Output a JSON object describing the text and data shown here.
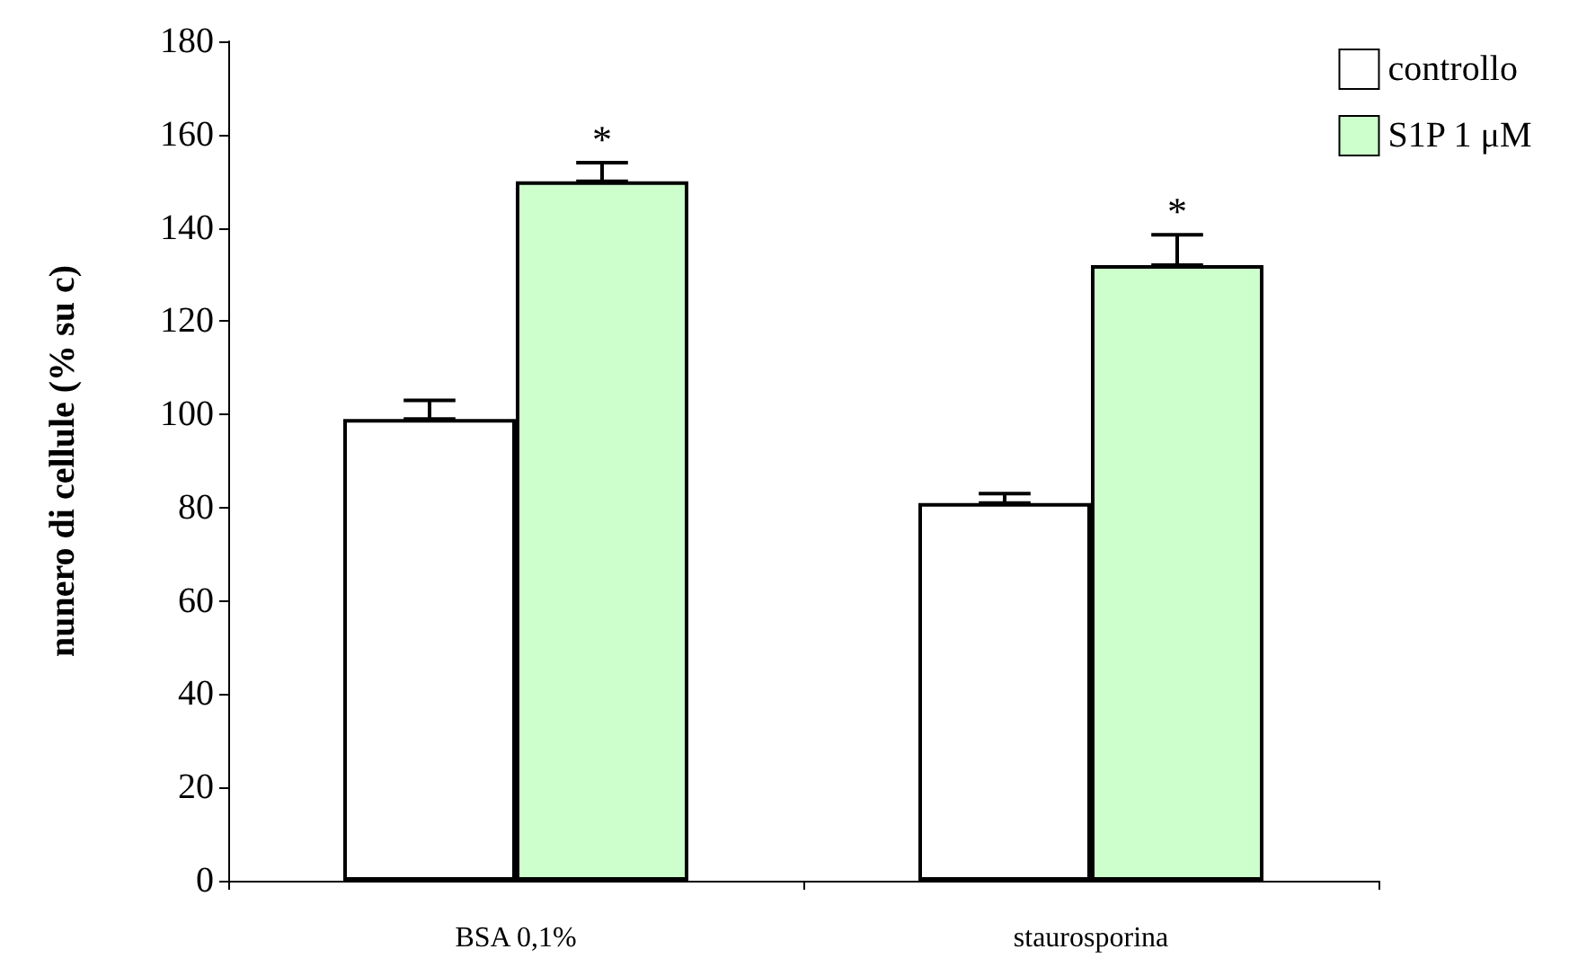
{
  "chart_data": {
    "type": "bar",
    "ylabel": "nunero di cellule (% su c)",
    "categories": [
      "BSA 0,1%",
      "staurosporina"
    ],
    "series": [
      {
        "name": "controllo",
        "color": "#ffffff",
        "values": [
          99,
          81
        ],
        "errors": [
          [
            99,
            103
          ],
          [
            81,
            83
          ]
        ]
      },
      {
        "name": "S1P 1 μM",
        "color": "#ccffcc",
        "values": [
          150,
          132
        ],
        "errors": [
          [
            150,
            154
          ],
          [
            132,
            138.5
          ]
        ]
      }
    ],
    "ylim": [
      0,
      180
    ],
    "yticks": [
      0,
      20,
      40,
      60,
      80,
      100,
      120,
      140,
      160,
      180
    ],
    "grid": false,
    "legend": "top right",
    "annotations": [
      "*",
      "*"
    ]
  }
}
